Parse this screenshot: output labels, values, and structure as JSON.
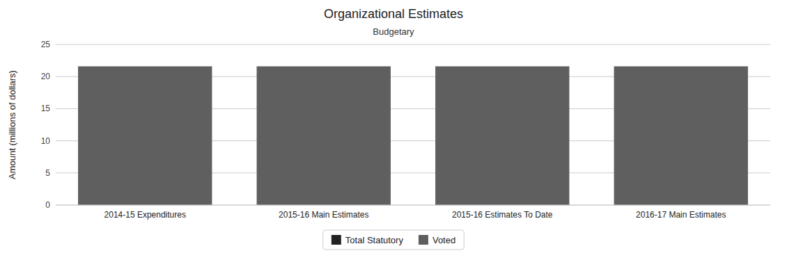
{
  "chart_data": {
    "type": "bar",
    "title": "Organizational Estimates",
    "subtitle": "Budgetary",
    "categories": [
      "2014-15 Expenditures",
      "2015-16 Main Estimates",
      "2015-16 Estimates To Date",
      "2016-17 Main Estimates"
    ],
    "series": [
      {
        "name": "Total Statutory",
        "color": "#222222",
        "values": [
          0.0,
          0.0,
          0.0,
          0.0
        ]
      },
      {
        "name": "Voted",
        "color": "#5f5f5f",
        "values": [
          21.6,
          21.6,
          21.6,
          21.6
        ]
      }
    ],
    "ylabel": "Amount (millions of dollars)",
    "ylim": [
      0,
      25
    ],
    "yticks": [
      0,
      5,
      10,
      15,
      20,
      25
    ],
    "grid": true,
    "stacked": true,
    "legend": "bottom"
  }
}
